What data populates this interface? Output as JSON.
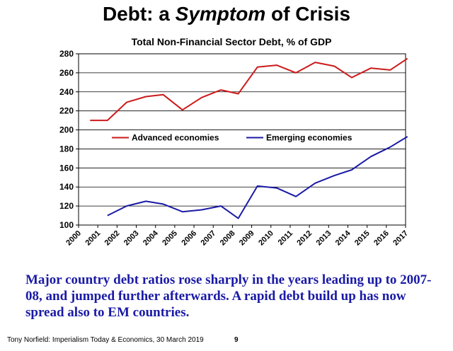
{
  "slide": {
    "title_pre": "Debt: a ",
    "title_em": "Symptom",
    "title_post": " of Crisis",
    "caption": "Major country debt ratios rose sharply in the years leading up to 2007-08, and jumped further afterwards. A rapid debt build up has now spread also to EM countries.",
    "footer": "Tony Norfield: Imperialism Today & Economics, 30 March 2019",
    "page_number": "9"
  },
  "chart_data": {
    "type": "line",
    "title": "Total Non-Financial Sector Debt, % of GDP",
    "xlabel": "",
    "ylabel": "",
    "x": [
      "2000",
      "2001",
      "2002",
      "2003",
      "2004",
      "2005",
      "2006",
      "2007",
      "2008",
      "2009",
      "2010",
      "2011",
      "2012",
      "2013",
      "2014",
      "2015",
      "2016",
      "2017"
    ],
    "ylim": [
      100,
      280
    ],
    "yticks": [
      100,
      120,
      140,
      160,
      180,
      200,
      220,
      240,
      260,
      280
    ],
    "grid": true,
    "legend": "inside-center",
    "series": [
      {
        "name": "Advanced economies",
        "color": "#cc1a1a",
        "points": [
          {
            "x": 2000.6,
            "y": 210
          },
          {
            "x": 2001.5,
            "y": 210
          },
          {
            "x": 2002.5,
            "y": 229
          },
          {
            "x": 2003.5,
            "y": 235
          },
          {
            "x": 2004.4,
            "y": 237
          },
          {
            "x": 2005.4,
            "y": 221
          },
          {
            "x": 2006.4,
            "y": 234
          },
          {
            "x": 2007.4,
            "y": 242
          },
          {
            "x": 2008.3,
            "y": 238
          },
          {
            "x": 2009.3,
            "y": 266
          },
          {
            "x": 2010.3,
            "y": 268
          },
          {
            "x": 2011.3,
            "y": 260
          },
          {
            "x": 2012.3,
            "y": 271
          },
          {
            "x": 2013.3,
            "y": 267
          },
          {
            "x": 2014.2,
            "y": 255
          },
          {
            "x": 2015.2,
            "y": 265
          },
          {
            "x": 2016.2,
            "y": 263
          },
          {
            "x": 2017.1,
            "y": 275
          }
        ]
      },
      {
        "name": "Emerging economies",
        "color": "#1a1aa6",
        "points": [
          {
            "x": 2001.5,
            "y": 110
          },
          {
            "x": 2002.5,
            "y": 120
          },
          {
            "x": 2003.5,
            "y": 125
          },
          {
            "x": 2004.4,
            "y": 122
          },
          {
            "x": 2005.4,
            "y": 114
          },
          {
            "x": 2006.4,
            "y": 116
          },
          {
            "x": 2007.4,
            "y": 120
          },
          {
            "x": 2008.3,
            "y": 107
          },
          {
            "x": 2009.3,
            "y": 141
          },
          {
            "x": 2010.3,
            "y": 139
          },
          {
            "x": 2011.3,
            "y": 130
          },
          {
            "x": 2012.3,
            "y": 144
          },
          {
            "x": 2013.3,
            "y": 152
          },
          {
            "x": 2014.2,
            "y": 158
          },
          {
            "x": 2015.2,
            "y": 172
          },
          {
            "x": 2016.2,
            "y": 182
          },
          {
            "x": 2017.1,
            "y": 193
          }
        ]
      }
    ]
  }
}
